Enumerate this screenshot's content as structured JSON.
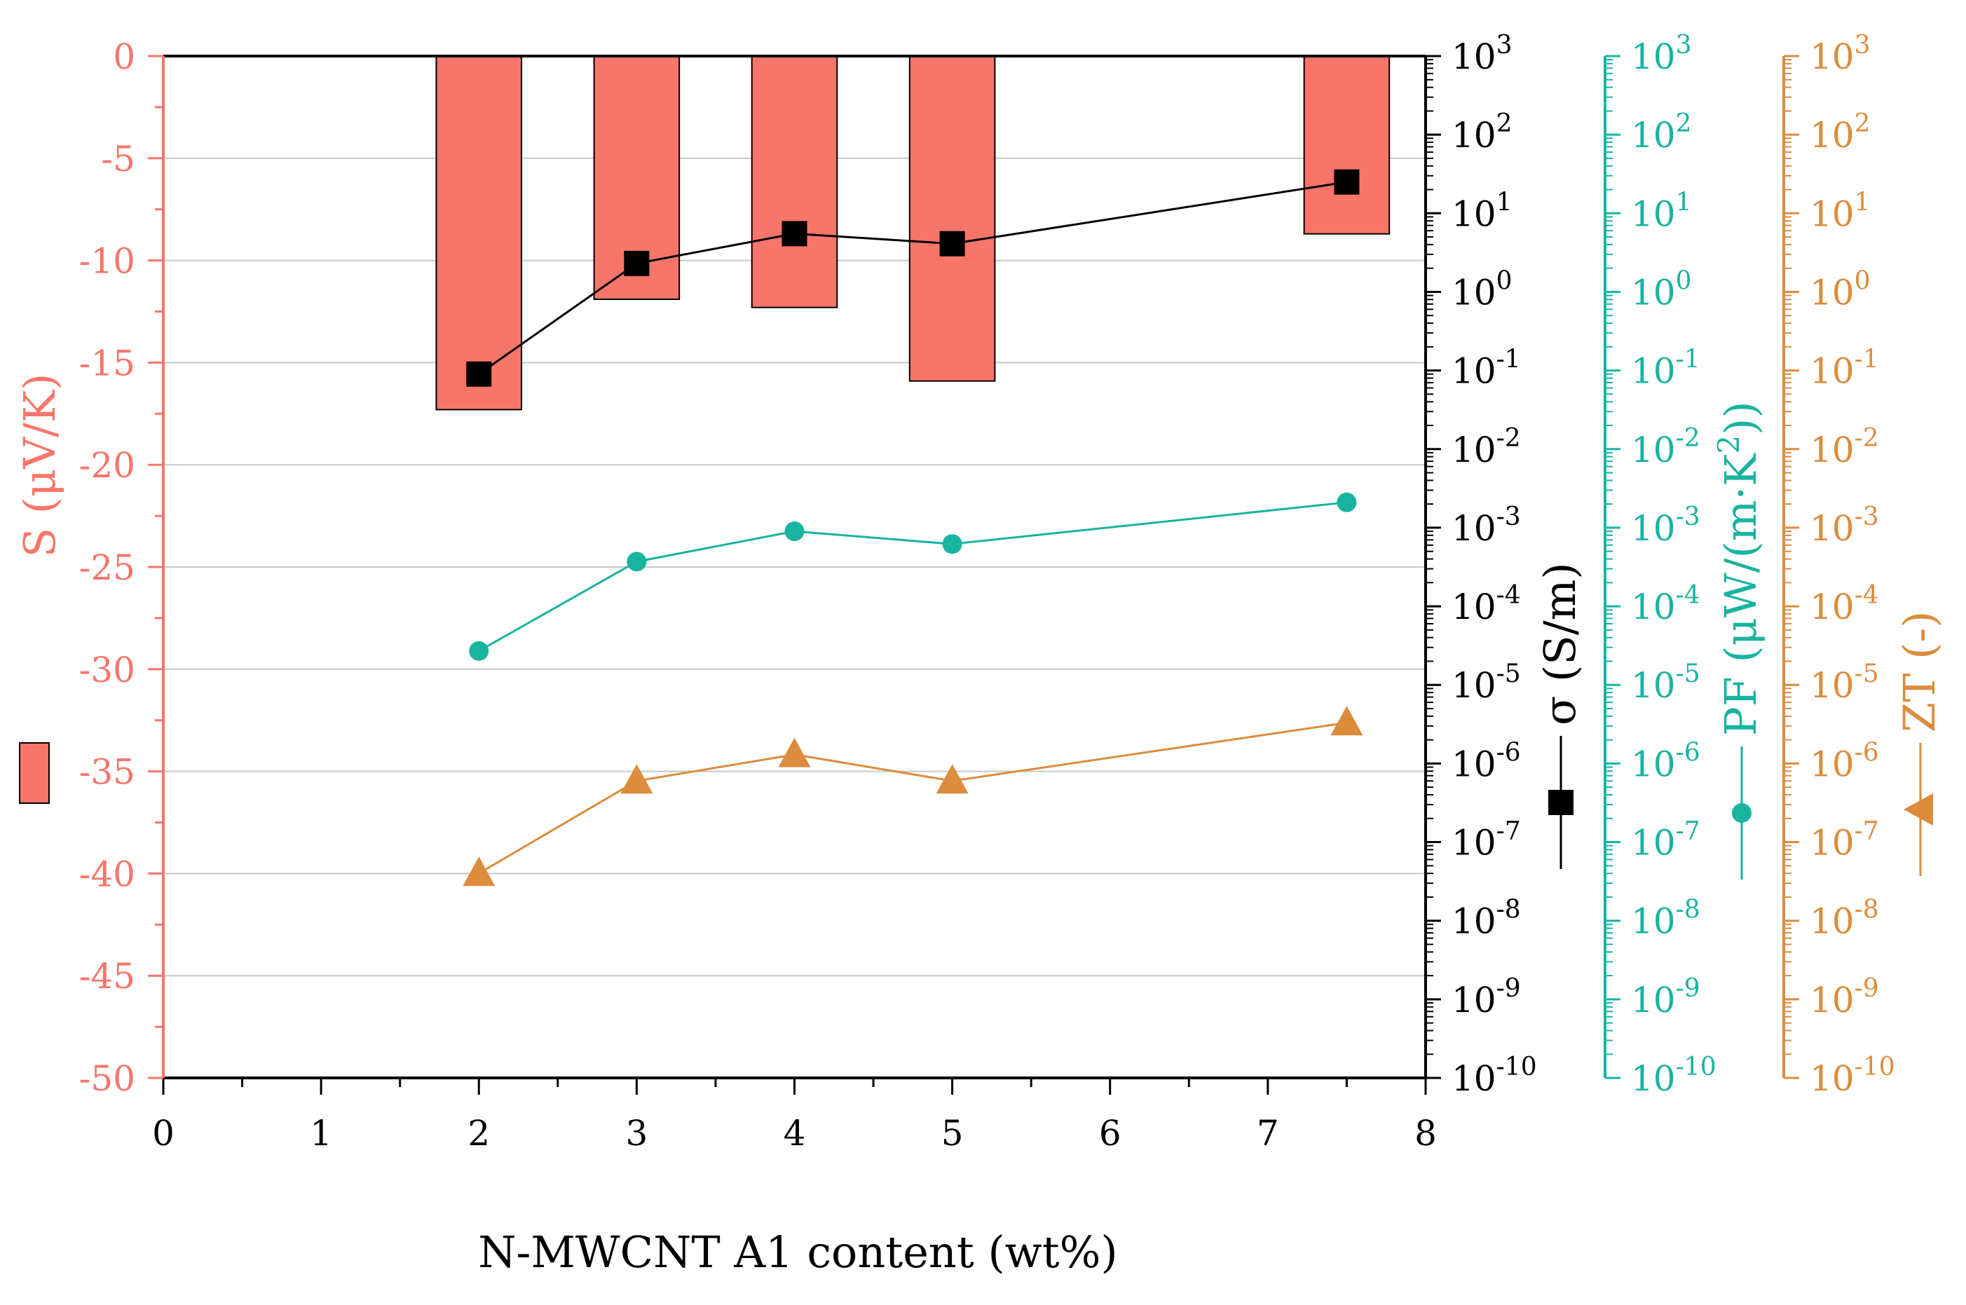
{
  "chart_data": {
    "type": "bar+line",
    "xlabel": "N-MWCNT A1 content (wt%)",
    "xlim": [
      0,
      8
    ],
    "x_ticks": [
      "0",
      "1",
      "2",
      "3",
      "4",
      "5",
      "6",
      "7",
      "8"
    ],
    "colors": {
      "S": "#f8756a",
      "sigma": "#000000",
      "PF": "#19b4a0",
      "ZT": "#dc8c3c",
      "grid": "#c8c8c8"
    },
    "left_axis": {
      "label": "S (μV/K)",
      "ylim": [
        -50,
        0
      ],
      "ticks": [
        "0",
        "-5",
        "-10",
        "-15",
        "-20",
        "-25",
        "-30",
        "-35",
        "-40",
        "-45",
        "-50"
      ]
    },
    "log_axes": {
      "ylim_exponent": [
        -10,
        3
      ],
      "tick_base": "10",
      "tick_exponents": [
        "3",
        "2",
        "1",
        "0",
        "-1",
        "-2",
        "-3",
        "-4",
        "-5",
        "-6",
        "-7",
        "-8",
        "-9",
        "-10"
      ]
    },
    "right_axes": [
      {
        "key": "sigma",
        "label": "σ (S/m)"
      },
      {
        "key": "PF",
        "label": "PF (μW/(m·K",
        "label_sup": "2",
        "label_end": "))"
      },
      {
        "key": "ZT",
        "label": "ZT (-)"
      }
    ],
    "series": [
      {
        "name": "S",
        "type": "bar",
        "axis": "left",
        "x": [
          2,
          3,
          4,
          5,
          7.5
        ],
        "values": [
          -17.3,
          -11.9,
          -12.3,
          -15.9,
          -8.7
        ]
      },
      {
        "name": "σ",
        "type": "line",
        "marker": "square",
        "axis": "sigma",
        "x": [
          2,
          3,
          4,
          5,
          7.5
        ],
        "values": [
          0.09,
          2.3,
          5.5,
          4.1,
          25
        ]
      },
      {
        "name": "PF",
        "type": "line",
        "marker": "circle",
        "axis": "PF",
        "x": [
          2,
          3,
          4,
          5,
          7.5
        ],
        "values": [
          2.7e-05,
          0.00037,
          0.0009,
          0.00062,
          0.0021
        ]
      },
      {
        "name": "ZT",
        "type": "line",
        "marker": "triangle",
        "axis": "ZT",
        "x": [
          2,
          3,
          4,
          5,
          7.5
        ],
        "values": [
          4e-08,
          6e-07,
          1.3e-06,
          6e-07,
          3.3e-06
        ]
      }
    ]
  }
}
